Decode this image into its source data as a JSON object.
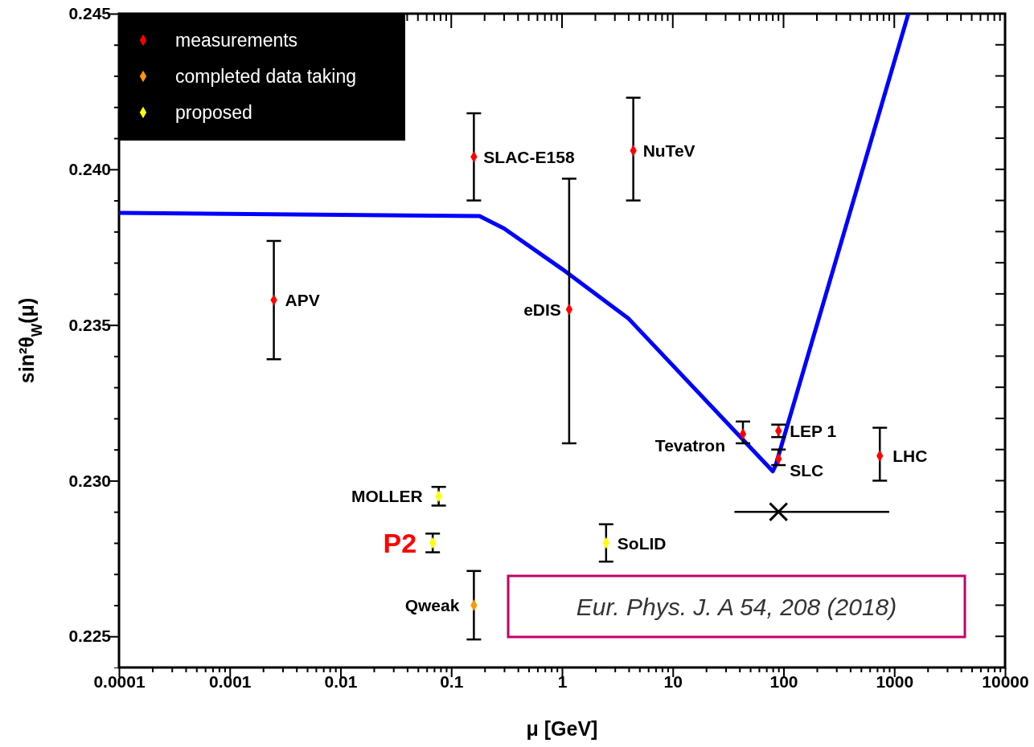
{
  "chart_data": {
    "type": "scatter",
    "xlabel": "μ [GeV]",
    "ylabel": "sin²θ$_{W}$(μ)",
    "log": "x",
    "legend": "top left",
    "marker": "diamond",
    "xlim": [
      0.0001,
      10000
    ],
    "ylim": [
      0.224,
      0.245
    ],
    "xticks": [
      {
        "value": 0.0001,
        "label": "0.0001"
      },
      {
        "value": 0.0002,
        "label": null
      },
      {
        "value": 0.0003,
        "label": null
      },
      {
        "value": 0.0004,
        "label": null
      },
      {
        "value": 0.0005,
        "label": null
      },
      {
        "value": 0.0006,
        "label": null
      },
      {
        "value": 0.0007,
        "label": null
      },
      {
        "value": 0.0008,
        "label": null
      },
      {
        "value": 0.0009,
        "label": null
      },
      {
        "value": 0.001,
        "label": "0.001"
      },
      {
        "value": 0.002,
        "label": null
      },
      {
        "value": 0.003,
        "label": null
      },
      {
        "value": 0.004,
        "label": null
      },
      {
        "value": 0.005,
        "label": null
      },
      {
        "value": 0.006,
        "label": null
      },
      {
        "value": 0.007,
        "label": null
      },
      {
        "value": 0.008,
        "label": null
      },
      {
        "value": 0.009,
        "label": null
      },
      {
        "value": 0.01,
        "label": "0.01"
      },
      {
        "value": 0.02,
        "label": null
      },
      {
        "value": 0.03,
        "label": null
      },
      {
        "value": 0.04,
        "label": null
      },
      {
        "value": 0.05,
        "label": null
      },
      {
        "value": 0.06,
        "label": null
      },
      {
        "value": 0.07,
        "label": null
      },
      {
        "value": 0.08,
        "label": null
      },
      {
        "value": 0.09,
        "label": null
      },
      {
        "value": 0.1,
        "label": "0.1"
      },
      {
        "value": 0.2,
        "label": null
      },
      {
        "value": 0.3,
        "label": null
      },
      {
        "value": 0.4,
        "label": null
      },
      {
        "value": 0.5,
        "label": null
      },
      {
        "value": 0.6,
        "label": null
      },
      {
        "value": 0.7,
        "label": null
      },
      {
        "value": 0.8,
        "label": null
      },
      {
        "value": 0.9,
        "label": null
      },
      {
        "value": 1,
        "label": "1"
      },
      {
        "value": 2,
        "label": null
      },
      {
        "value": 3,
        "label": null
      },
      {
        "value": 4,
        "label": null
      },
      {
        "value": 5,
        "label": null
      },
      {
        "value": 6,
        "label": null
      },
      {
        "value": 7,
        "label": null
      },
      {
        "value": 8,
        "label": null
      },
      {
        "value": 9,
        "label": null
      },
      {
        "value": 10,
        "label": "10"
      },
      {
        "value": 20,
        "label": null
      },
      {
        "value": 30,
        "label": null
      },
      {
        "value": 40,
        "label": null
      },
      {
        "value": 50,
        "label": null
      },
      {
        "value": 60,
        "label": null
      },
      {
        "value": 70,
        "label": null
      },
      {
        "value": 80,
        "label": null
      },
      {
        "value": 90,
        "label": null
      },
      {
        "value": 100,
        "label": "100"
      },
      {
        "value": 200,
        "label": null
      },
      {
        "value": 300,
        "label": null
      },
      {
        "value": 400,
        "label": null
      },
      {
        "value": 500,
        "label": null
      },
      {
        "value": 600,
        "label": null
      },
      {
        "value": 700,
        "label": null
      },
      {
        "value": 800,
        "label": null
      },
      {
        "value": 900,
        "label": null
      },
      {
        "value": 1000,
        "label": "1000"
      },
      {
        "value": 2000,
        "label": null
      },
      {
        "value": 3000,
        "label": null
      },
      {
        "value": 4000,
        "label": null
      },
      {
        "value": 5000,
        "label": null
      },
      {
        "value": 6000,
        "label": null
      },
      {
        "value": 7000,
        "label": null
      },
      {
        "value": 8000,
        "label": null
      },
      {
        "value": 9000,
        "label": null
      },
      {
        "value": 10000,
        "label": "10000"
      }
    ],
    "yticks": [
      {
        "value": 0.225,
        "label": "0.225"
      },
      {
        "value": 0.226,
        "label": null
      },
      {
        "value": 0.227,
        "label": null
      },
      {
        "value": 0.228,
        "label": null
      },
      {
        "value": 0.229,
        "label": null
      },
      {
        "value": 0.23,
        "label": "0.230"
      },
      {
        "value": 0.231,
        "label": null
      },
      {
        "value": 0.232,
        "label": null
      },
      {
        "value": 0.233,
        "label": null
      },
      {
        "value": 0.234,
        "label": null
      },
      {
        "value": 0.235,
        "label": "0.235"
      },
      {
        "value": 0.236,
        "label": null
      },
      {
        "value": 0.237,
        "label": null
      },
      {
        "value": 0.238,
        "label": null
      },
      {
        "value": 0.239,
        "label": null
      },
      {
        "value": 0.24,
        "label": "0.240"
      },
      {
        "value": 0.241,
        "label": null
      },
      {
        "value": 0.242,
        "label": null
      },
      {
        "value": 0.243,
        "label": null
      },
      {
        "value": 0.244,
        "label": null
      },
      {
        "value": 0.245,
        "label": "0.245"
      }
    ],
    "series": [
      {
        "type": "line",
        "color": "#0000ff",
        "marker": "none",
        "x": [
          0.0001,
          0.18,
          0.3,
          1,
          4,
          80,
          85,
          1340
        ],
        "values": [
          0.2386,
          0.2385,
          0.2381,
          0.2368,
          0.2352,
          0.2303,
          0.2305,
          0.245
        ]
      },
      {
        "name": "measurements",
        "color": "#ff0000",
        "x": [
          0.0025,
          0.16,
          1.16,
          4.4,
          43,
          90,
          90,
          740
        ],
        "values": [
          0.2358,
          0.2404,
          0.2355,
          0.2406,
          0.2315,
          0.2316,
          0.2307,
          0.2308
        ],
        "errors": [
          [
            0.2339,
            0.2377
          ],
          [
            0.239,
            0.2418
          ],
          [
            0.2312,
            0.2397
          ],
          [
            0.239,
            0.2423
          ],
          [
            0.2312,
            0.2319
          ],
          [
            0.2314,
            0.2318
          ],
          [
            0.2305,
            0.231
          ],
          [
            0.23,
            0.2317
          ]
        ]
      },
      {
        "name": "completed data taking",
        "color": "#ff9900",
        "x": [
          0.16
        ],
        "values": [
          0.226
        ],
        "errors": [
          [
            0.2249,
            0.2271
          ]
        ]
      },
      {
        "name": "proposed",
        "color": "#ffff00",
        "x": [
          0.077,
          0.068,
          2.5
        ],
        "values": [
          0.2295,
          0.228,
          0.228
        ],
        "errors": [
          [
            0.2292,
            0.2298
          ],
          [
            0.2277,
            0.2283
          ],
          [
            0.2274,
            0.2286
          ]
        ]
      },
      {
        "color": "#000000",
        "marker": "cross",
        "x": [
          90
        ],
        "values": [
          0.229
        ],
        "xerrors": [
          [
            36,
            900
          ]
        ]
      }
    ],
    "annotations": [
      {
        "text": "APV",
        "x": 0.0025,
        "y": 0.2358
      },
      {
        "text": "SLAC-E158",
        "x": 0.16,
        "y": 0.2404
      },
      {
        "text": "eDIS",
        "x": 1.16,
        "y": 0.2355
      },
      {
        "text": "NuTeV",
        "x": 4.4,
        "y": 0.2406
      },
      {
        "text": "Tevatron",
        "x": 43,
        "y": 0.2315
      },
      {
        "text": "LEP 1",
        "x": 90,
        "y": 0.2316
      },
      {
        "text": "SLC",
        "x": 90,
        "y": 0.2307
      },
      {
        "text": "LHC",
        "x": 740,
        "y": 0.2308
      },
      {
        "text": "SoLID",
        "x": 2.5,
        "y": 0.228
      },
      {
        "text": "MOLLER",
        "x": 0.077,
        "y": 0.2295
      },
      {
        "text": "P2",
        "x": 0.068,
        "y": 0.228
      },
      {
        "text": "Qweak",
        "x": 0.16,
        "y": 0.226
      },
      "Eur. Phys. J. A 54, 208 (2018)"
    ]
  }
}
